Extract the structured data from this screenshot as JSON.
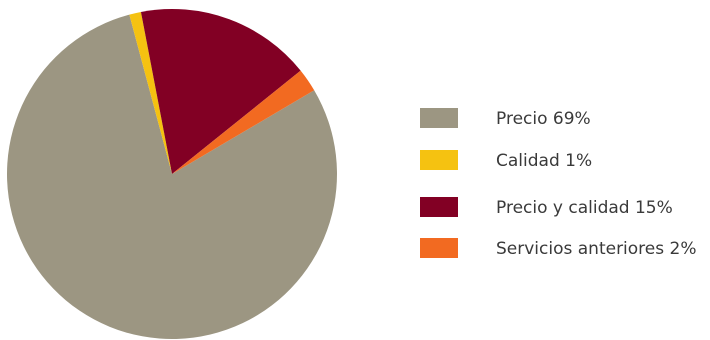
{
  "chart_data": {
    "type": "pie",
    "slices": [
      {
        "label": "Precio 69%",
        "value": 69,
        "color": "#9c9682"
      },
      {
        "label": "Calidad 1%",
        "value": 1,
        "color": "#f5c211"
      },
      {
        "label": "Precio y calidad 15%",
        "value": 15,
        "color": "#820024"
      },
      {
        "label": "Servicios anteriores 2%",
        "value": 2,
        "color": "#f26a21"
      }
    ],
    "legend_position": "right",
    "start_angle_deg": -30.5,
    "direction": "clockwise"
  }
}
